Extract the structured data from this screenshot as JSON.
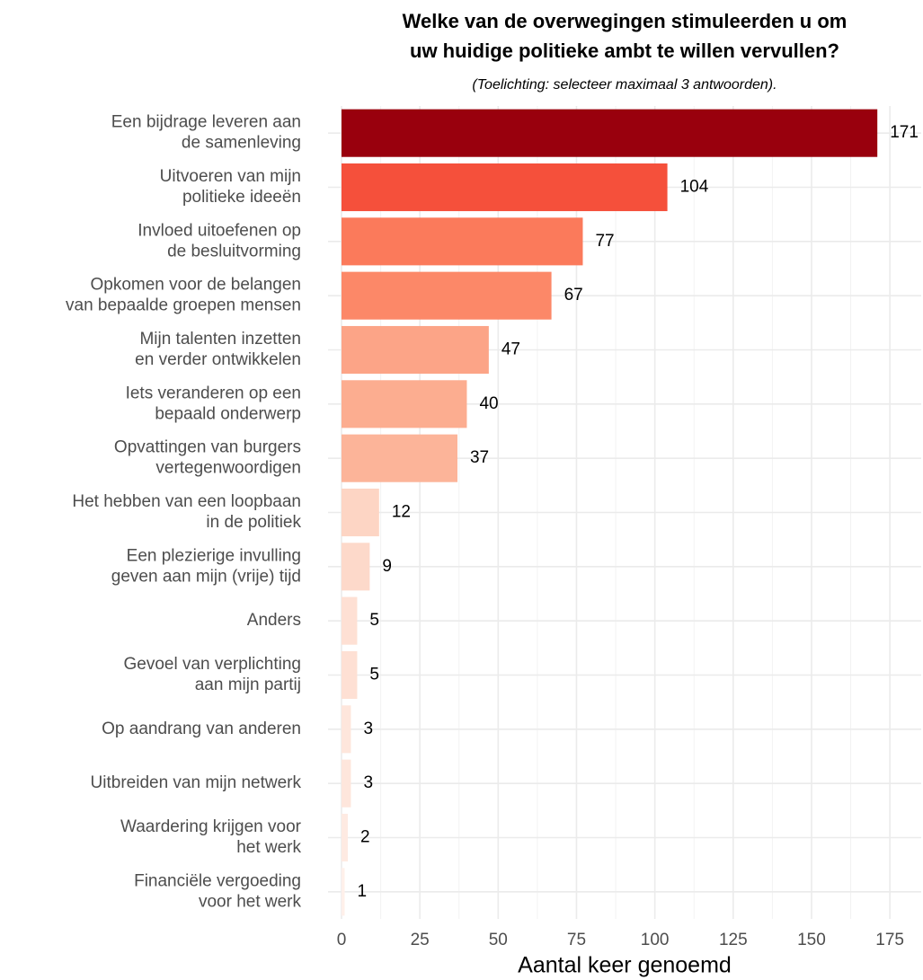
{
  "chart_data": {
    "type": "barh",
    "title": [
      "Welke van de overwegingen stimuleerden u om",
      "uw huidige politieke ambt te willen vervullen?"
    ],
    "subtitle": "(Toelichting: selecteer maximaal 3 antwoorden).",
    "x_label": "Aantal keer genoemd",
    "categories": [
      [
        "Een bijdrage leveren aan",
        "de samenleving"
      ],
      [
        "Uitvoeren van mijn",
        "politieke ideeën"
      ],
      [
        "Invloed uitoefenen op",
        "de besluitvorming"
      ],
      [
        "Opkomen voor de belangen",
        "van bepaalde groepen mensen"
      ],
      [
        "Mijn talenten inzetten",
        "en verder ontwikkelen"
      ],
      [
        "Iets veranderen op een",
        "bepaald onderwerp"
      ],
      [
        "Opvattingen van burgers",
        "vertegenwoordigen"
      ],
      [
        "Het hebben van een loopbaan",
        "in de politiek"
      ],
      [
        "Een plezierige invulling",
        "geven aan mijn (vrije) tijd"
      ],
      [
        "Anders"
      ],
      [
        "Gevoel van verplichting",
        "aan mijn partij"
      ],
      [
        "Op aandrang van anderen"
      ],
      [
        "Uitbreiden van mijn netwerk"
      ],
      [
        "Waardering krijgen voor",
        "het werk"
      ],
      [
        "Financiële vergoeding",
        "voor het werk"
      ]
    ],
    "values": [
      171,
      104,
      77,
      67,
      47,
      40,
      37,
      12,
      9,
      5,
      5,
      3,
      3,
      2,
      1
    ],
    "colors": [
      "#99000d",
      "#f5503b",
      "#fb7a5b",
      "#fc8868",
      "#fca487",
      "#fcad90",
      "#fcb499",
      "#fdd5c4",
      "#fdd9ca",
      "#fee0d4",
      "#fee0d4",
      "#fee6dc",
      "#fee6dc",
      "#feeae2",
      "#fff0ea"
    ],
    "xlim": [
      -4.3,
      185
    ],
    "xticks": [
      0,
      25,
      50,
      75,
      100,
      125,
      150,
      175
    ],
    "xticks_minor": [
      12.5,
      37.5,
      62.5,
      87.5,
      112.5,
      137.5,
      162.5
    ],
    "grid": true
  }
}
